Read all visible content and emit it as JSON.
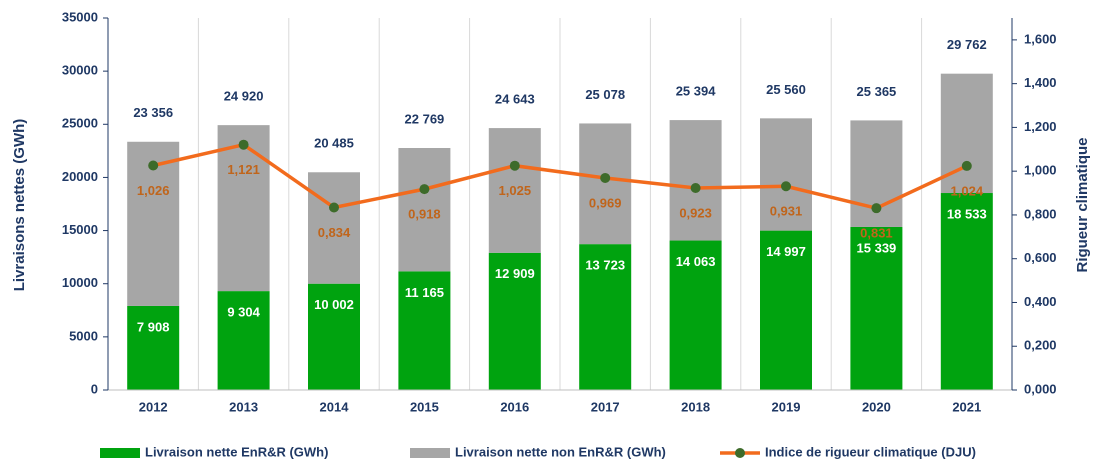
{
  "chart_data": {
    "type": "bar-line",
    "ylabel": "Livraisons nettes (GWh)",
    "y2label": "Rigueur climatique",
    "categories": [
      "2012",
      "2013",
      "2014",
      "2015",
      "2016",
      "2017",
      "2018",
      "2019",
      "2020",
      "2021"
    ],
    "series": [
      {
        "name": "Livraison nette EnR&R (GWh)",
        "color": "#00a30f",
        "type": "bar",
        "values": [
          7908,
          9304,
          10002,
          11165,
          12909,
          13723,
          14063,
          14997,
          15339,
          18533
        ],
        "value_labels": [
          "7 908",
          "9 304",
          "10 002",
          "11 165",
          "12 909",
          "13 723",
          "14 063",
          "14 997",
          "15 339",
          "18 533"
        ]
      },
      {
        "name": "Livraison nette non EnR&R (GWh)",
        "color": "#a6a6a6",
        "type": "bar",
        "values": [
          15448,
          15616,
          10483,
          11604,
          11734,
          11355,
          11331,
          10563,
          10026,
          11229
        ]
      },
      {
        "name": "Indice de rigueur climatique (DJU)",
        "color": "#f26b1d",
        "marker_color": "#3d6b2a",
        "type": "line",
        "axis": "y2",
        "values": [
          1.026,
          1.121,
          0.834,
          0.918,
          1.025,
          0.969,
          0.923,
          0.931,
          0.831,
          1.024
        ],
        "value_labels": [
          "1,026",
          "1,121",
          "0,834",
          "0,918",
          "1,025",
          "0,969",
          "0,923",
          "0,931",
          "0,831",
          "1,024"
        ]
      }
    ],
    "totals": {
      "values": [
        23356,
        24920,
        20485,
        22769,
        24643,
        25078,
        25394,
        25560,
        25365,
        29762
      ],
      "value_labels": [
        "23 356",
        "24 920",
        "20 485",
        "22 769",
        "24 643",
        "25 078",
        "25 394",
        "25 560",
        "25 365",
        "29 762"
      ]
    },
    "ylim": [
      0,
      35000
    ],
    "yticks": [
      0,
      5000,
      10000,
      15000,
      20000,
      25000,
      30000,
      35000
    ],
    "y2lim": [
      0,
      1.7
    ],
    "y2ticks": [
      {
        "value": 0,
        "label": "0,000"
      },
      {
        "value": 0.2,
        "label": "0,200"
      },
      {
        "value": 0.4,
        "label": "0,400"
      },
      {
        "value": 0.6,
        "label": "0,600"
      },
      {
        "value": 0.8,
        "label": "0,800"
      },
      {
        "value": 1.0,
        "label": "1,000"
      },
      {
        "value": 1.2,
        "label": "1,200"
      },
      {
        "value": 1.4,
        "label": "1,400"
      },
      {
        "value": 1.6,
        "label": "1,600"
      }
    ],
    "legend": "bottom"
  }
}
